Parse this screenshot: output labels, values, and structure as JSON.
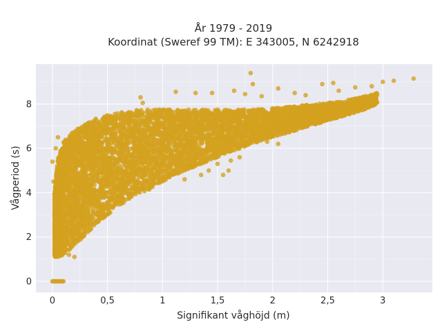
{
  "chart_data": {
    "type": "scatter",
    "title": "År 1979 - 2019",
    "subtitle": "Koordinat (Sweref 99 TM): E 343005, N 6242918",
    "xlabel": "Signifikant våghöjd (m)",
    "ylabel": "Vågperiod (s)",
    "xlim": [
      -0.15,
      3.45
    ],
    "ylim": [
      -0.5,
      9.8
    ],
    "x_ticks": [
      0,
      0.5,
      1,
      1.5,
      2,
      2.5,
      3
    ],
    "x_tick_labels": [
      "0",
      "0,5",
      "1",
      "1,5",
      "2",
      "2,5",
      "3"
    ],
    "y_ticks": [
      0,
      2,
      4,
      6,
      8
    ],
    "y_tick_labels": [
      "0",
      "2",
      "4",
      "6",
      "8"
    ],
    "grid": true,
    "marker_color": "#D4A21F",
    "plot_background": "#E9E9F2",
    "density_envelope": {
      "x": [
        0.02,
        0.05,
        0.1,
        0.2,
        0.3,
        0.4,
        0.5,
        0.6,
        0.7,
        0.8,
        0.9,
        1.0,
        1.2,
        1.4,
        1.6,
        1.8,
        2.0,
        2.2,
        2.4,
        2.6,
        2.8,
        2.95
      ],
      "y_upper": [
        4.0,
        5.6,
        6.3,
        6.8,
        7.1,
        7.35,
        7.5,
        7.6,
        7.7,
        7.75,
        7.75,
        7.75,
        7.75,
        7.75,
        7.75,
        7.75,
        7.8,
        7.9,
        8.0,
        8.1,
        8.3,
        8.5
      ],
      "y_lower": [
        1.1,
        1.1,
        1.2,
        1.6,
        2.1,
        2.6,
        3.0,
        3.4,
        3.7,
        3.9,
        4.2,
        4.5,
        5.0,
        5.4,
        5.8,
        6.2,
        6.5,
        6.8,
        7.1,
        7.4,
        7.7,
        8.0
      ]
    },
    "outliers": [
      {
        "x": 1.8,
        "y": 9.4
      },
      {
        "x": 3.28,
        "y": 9.15
      },
      {
        "x": 3.0,
        "y": 9.0
      },
      {
        "x": 2.45,
        "y": 8.9
      },
      {
        "x": 2.55,
        "y": 8.95
      },
      {
        "x": 2.75,
        "y": 8.75
      },
      {
        "x": 1.82,
        "y": 8.9
      },
      {
        "x": 1.65,
        "y": 8.6
      },
      {
        "x": 1.45,
        "y": 8.5
      },
      {
        "x": 1.3,
        "y": 8.5
      },
      {
        "x": 1.12,
        "y": 8.55
      },
      {
        "x": 2.05,
        "y": 8.7
      },
      {
        "x": 1.9,
        "y": 8.35
      },
      {
        "x": 2.2,
        "y": 8.5
      },
      {
        "x": 0.8,
        "y": 8.3
      },
      {
        "x": 0.82,
        "y": 8.05
      },
      {
        "x": 1.75,
        "y": 8.45
      },
      {
        "x": 2.3,
        "y": 8.4
      },
      {
        "x": 2.6,
        "y": 8.6
      },
      {
        "x": 2.9,
        "y": 8.8
      },
      {
        "x": 3.1,
        "y": 9.05
      },
      {
        "x": 0.05,
        "y": 6.5
      },
      {
        "x": 0.03,
        "y": 6.0
      },
      {
        "x": 0.0,
        "y": 5.4
      },
      {
        "x": 0.01,
        "y": 4.5
      },
      {
        "x": 0.02,
        "y": 3.8
      },
      {
        "x": 1.55,
        "y": 4.8
      },
      {
        "x": 1.35,
        "y": 4.8
      },
      {
        "x": 1.6,
        "y": 5.0
      },
      {
        "x": 1.5,
        "y": 5.3
      },
      {
        "x": 1.7,
        "y": 5.6
      },
      {
        "x": 1.2,
        "y": 4.6
      },
      {
        "x": 1.95,
        "y": 6.3
      },
      {
        "x": 2.05,
        "y": 6.2
      },
      {
        "x": 1.62,
        "y": 5.45
      },
      {
        "x": 1.42,
        "y": 5.0
      },
      {
        "x": 0.2,
        "y": 1.1
      },
      {
        "x": 0.15,
        "y": 1.2
      }
    ],
    "zero_period_points": {
      "y": 0,
      "x": [
        0.0,
        0.01,
        0.02,
        0.03,
        0.04,
        0.05,
        0.06,
        0.07,
        0.08,
        0.09,
        0.1
      ]
    }
  }
}
